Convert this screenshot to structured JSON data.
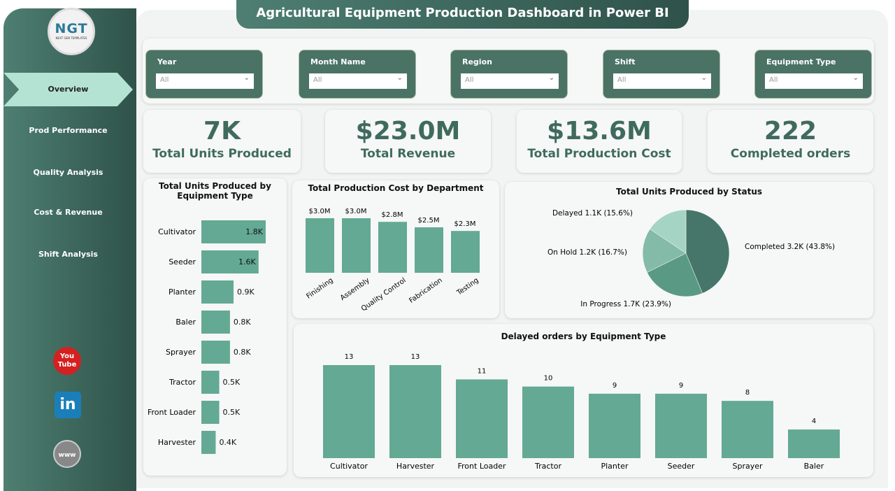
{
  "title": "Agricultural Equipment Production Dashboard in Power BI",
  "logo": {
    "text": "NGT",
    "subtext": "NEXT GEN TEMPLATES"
  },
  "nav": [
    {
      "label": "Overview",
      "active": true
    },
    {
      "label": "Prod Performance"
    },
    {
      "label": "Quality Analysis"
    },
    {
      "label": "Cost & Revenue"
    },
    {
      "label": "Shift Analysis"
    }
  ],
  "social": [
    {
      "icon": "youtube-icon",
      "label": "You Tube"
    },
    {
      "icon": "linkedin-icon",
      "label": "in"
    },
    {
      "icon": "globe-icon",
      "label": "www"
    }
  ],
  "filters": [
    {
      "label": "Year",
      "value": "All"
    },
    {
      "label": "Month Name",
      "value": "All"
    },
    {
      "label": "Region",
      "value": "All"
    },
    {
      "label": "Shift",
      "value": "All"
    },
    {
      "label": "Equipment Type",
      "value": "All"
    }
  ],
  "kpis": [
    {
      "value": "7K",
      "label": "Total Units Produced"
    },
    {
      "value": "$23.0M",
      "label": "Total Revenue"
    },
    {
      "value": "$13.6M",
      "label": "Total Production Cost"
    },
    {
      "value": "222",
      "label": "Completed orders"
    }
  ],
  "colors": {
    "bar": "#63a993",
    "dark": "#4a7366",
    "pie": [
      "#46766a",
      "#5a9a85",
      "#84bba8",
      "#a5d4c4"
    ]
  },
  "chart_data": [
    {
      "type": "bar",
      "orientation": "horizontal",
      "title": "Total Units Produced by Equipment Type",
      "categories": [
        "Cultivator",
        "Seeder",
        "Planter",
        "Baler",
        "Sprayer",
        "Tractor",
        "Front Loader",
        "Harvester"
      ],
      "values": [
        1.8,
        1.6,
        0.9,
        0.8,
        0.8,
        0.5,
        0.5,
        0.4
      ],
      "labels": [
        "1.8K",
        "1.6K",
        "0.9K",
        "0.8K",
        "0.8K",
        "0.5K",
        "0.5K",
        "0.4K"
      ]
    },
    {
      "type": "bar",
      "title": "Total Production Cost by Department",
      "categories": [
        "Finishing",
        "Assembly",
        "Quality Control",
        "Fabrication",
        "Testing"
      ],
      "values": [
        3.0,
        3.0,
        2.8,
        2.5,
        2.3
      ],
      "labels": [
        "$3.0M",
        "$3.0M",
        "$2.8M",
        "$2.5M",
        "$2.3M"
      ]
    },
    {
      "type": "pie",
      "title": "Total Units Produced by Status",
      "categories": [
        "Completed",
        "In Progress",
        "On Hold",
        "Delayed"
      ],
      "values": [
        43.8,
        23.9,
        16.7,
        15.6
      ],
      "labels": [
        "Completed 3.2K (43.8%)",
        "In Progress 1.7K (23.9%)",
        "On Hold 1.2K (16.7%)",
        "Delayed 1.1K (15.6%)"
      ]
    },
    {
      "type": "bar",
      "title": "Delayed orders by Equipment Type",
      "categories": [
        "Cultivator",
        "Harvester",
        "Front Loader",
        "Tractor",
        "Planter",
        "Seeder",
        "Sprayer",
        "Baler"
      ],
      "values": [
        13,
        13,
        11,
        10,
        9,
        9,
        8,
        4
      ]
    }
  ]
}
